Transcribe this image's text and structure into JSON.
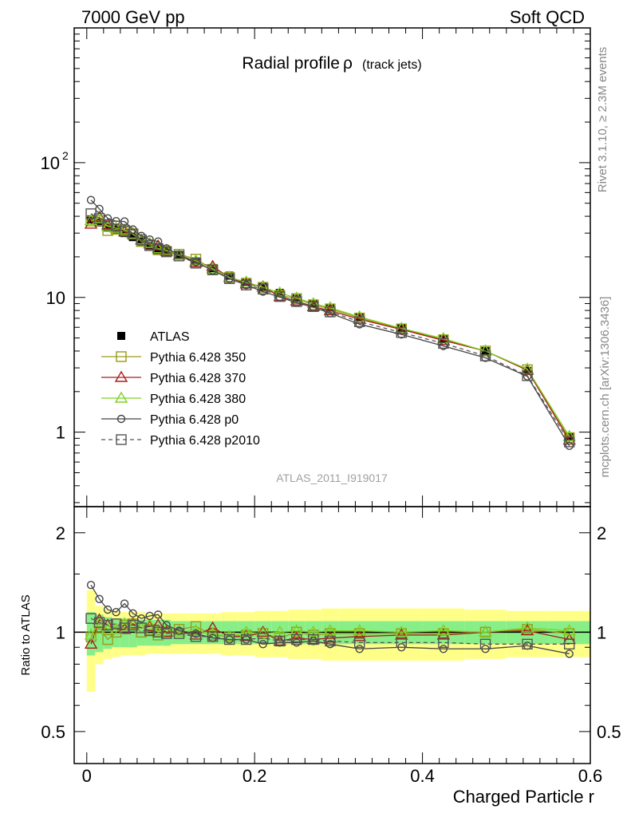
{
  "header": {
    "left": "7000 GeV pp",
    "right": "Soft QCD"
  },
  "side_labels": {
    "rivet": "Rivet 3.1.10, ≥ 2.3M events",
    "mcplots": "mcplots.cern.ch [arXiv:1306.3436]"
  },
  "chart_data": {
    "type": "line",
    "title": "Radial profile",
    "title_symbol": "ρ",
    "title_suffix": "(track jets)",
    "analysis_id": "ATLAS_2011_I919017",
    "xlabel": "Charged Particle r",
    "ylabel_ratio": "Ratio to ATLAS",
    "xlim": [
      -0.015,
      0.6
    ],
    "main_ylim": [
      0.28,
      1000
    ],
    "main_yscale": "log",
    "ratio_ylim": [
      0.4,
      2.4
    ],
    "ratio_yscale": "log",
    "main_yticks": [
      {
        "value": 1,
        "label": "1"
      },
      {
        "value": 10,
        "label": "10"
      },
      {
        "value": 100,
        "label": "10",
        "sup": "2"
      }
    ],
    "ratio_yticks": [
      {
        "value": 0.5,
        "label": "0.5"
      },
      {
        "value": 1,
        "label": "1"
      },
      {
        "value": 2,
        "label": "2"
      }
    ],
    "xticks": [
      {
        "value": 0,
        "label": "0"
      },
      {
        "value": 0.2,
        "label": "0.2"
      },
      {
        "value": 0.4,
        "label": "0.4"
      },
      {
        "value": 0.6,
        "label": "0.6"
      }
    ],
    "legend_position": "lower-left",
    "x": [
      0.005,
      0.015,
      0.025,
      0.035,
      0.045,
      0.055,
      0.065,
      0.075,
      0.085,
      0.095,
      0.11,
      0.13,
      0.15,
      0.17,
      0.19,
      0.21,
      0.23,
      0.25,
      0.27,
      0.29,
      0.325,
      0.375,
      0.425,
      0.475,
      0.525,
      0.575
    ],
    "x_edges": [
      0,
      0.01,
      0.02,
      0.03,
      0.04,
      0.05,
      0.06,
      0.07,
      0.08,
      0.09,
      0.1,
      0.12,
      0.14,
      0.16,
      0.18,
      0.2,
      0.22,
      0.24,
      0.26,
      0.28,
      0.3,
      0.35,
      0.4,
      0.45,
      0.5,
      0.55,
      0.6
    ],
    "atlas": [
      38,
      36,
      33,
      32,
      30,
      28,
      26,
      24,
      23,
      22,
      20.5,
      18.5,
      16.5,
      14.5,
      13,
      12,
      10.8,
      9.8,
      9.0,
      8.3,
      7.1,
      5.9,
      4.9,
      4.0,
      2.85,
      0.92
    ],
    "band_inner": [
      0.15,
      0.13,
      0.11,
      0.1,
      0.1,
      0.1,
      0.09,
      0.09,
      0.09,
      0.09,
      0.08,
      0.08,
      0.08,
      0.08,
      0.08,
      0.08,
      0.08,
      0.08,
      0.08,
      0.08,
      0.08,
      0.08,
      0.08,
      0.08,
      0.08,
      0.08
    ],
    "band_outer": [
      0.34,
      0.2,
      0.17,
      0.16,
      0.15,
      0.15,
      0.15,
      0.14,
      0.14,
      0.14,
      0.14,
      0.14,
      0.14,
      0.15,
      0.15,
      0.16,
      0.16,
      0.17,
      0.17,
      0.18,
      0.18,
      0.18,
      0.18,
      0.17,
      0.16,
      0.16
    ],
    "series": [
      {
        "name": "ATLAS",
        "color": "#000000",
        "marker": "filled-square",
        "dash": "",
        "ratio": [
          1,
          1,
          1,
          1,
          1,
          1,
          1,
          1,
          1,
          1,
          1,
          1,
          1,
          1,
          1,
          1,
          1,
          1,
          1,
          1,
          1,
          1,
          1,
          1,
          1,
          1
        ]
      },
      {
        "name": "Pythia 6.428 350",
        "color": "#9a9a18",
        "marker": "open-square",
        "dash": "",
        "ratio": [
          0.97,
          1.03,
          0.95,
          1.0,
          1.05,
          1.06,
          1.0,
          1.02,
          0.98,
          1.0,
          1.02,
          1.04,
          0.98,
          0.97,
          0.98,
          0.99,
          0.96,
          1.0,
          0.98,
          0.99,
          0.99,
          0.99,
          0.99,
          1.0,
          1.02,
          0.99
        ]
      },
      {
        "name": "Pythia 6.428 370",
        "color": "#aa1c1c",
        "marker": "open-triangle",
        "dash": "",
        "ratio": [
          0.92,
          1.09,
          1.05,
          1.02,
          1.02,
          1.06,
          1.03,
          1.04,
          1.05,
          1.0,
          1.0,
          0.98,
          1.03,
          0.97,
          0.97,
          1.0,
          0.94,
          0.96,
          0.95,
          0.96,
          0.97,
          0.98,
          0.98,
          1.0,
          1.01,
          0.95
        ]
      },
      {
        "name": "Pythia 6.428 380",
        "color": "#7ed221",
        "marker": "open-triangle",
        "dash": "",
        "ratio": [
          0.98,
          1.07,
          1.02,
          1.02,
          1.06,
          1.05,
          1.03,
          1.05,
          1.0,
          1.02,
          1.0,
          1.01,
          0.99,
          0.97,
          1.0,
          0.99,
          1.0,
          1.01,
          1.0,
          1.01,
          1.01,
          1.0,
          1.01,
          1.0,
          1.03,
          1.01
        ]
      },
      {
        "name": "Pythia 6.428 p0",
        "color": "#444444",
        "marker": "open-circle",
        "dash": "",
        "ratio": [
          1.39,
          1.26,
          1.17,
          1.15,
          1.22,
          1.14,
          1.1,
          1.12,
          1.13,
          1.05,
          1.01,
          0.99,
          0.96,
          0.95,
          0.95,
          0.92,
          0.93,
          0.93,
          0.94,
          0.92,
          0.89,
          0.9,
          0.89,
          0.89,
          0.91,
          0.86
        ]
      },
      {
        "name": "Pythia 6.428 p2010",
        "color": "#555555",
        "marker": "open-square",
        "dash": "5,4",
        "ratio": [
          1.1,
          1.07,
          1.05,
          1.06,
          1.03,
          1.05,
          1.03,
          1.01,
          1.0,
          0.99,
          0.99,
          0.97,
          0.97,
          0.95,
          0.95,
          0.96,
          0.94,
          0.95,
          0.95,
          0.94,
          0.93,
          0.93,
          0.93,
          0.92,
          0.92,
          0.92
        ]
      }
    ]
  }
}
